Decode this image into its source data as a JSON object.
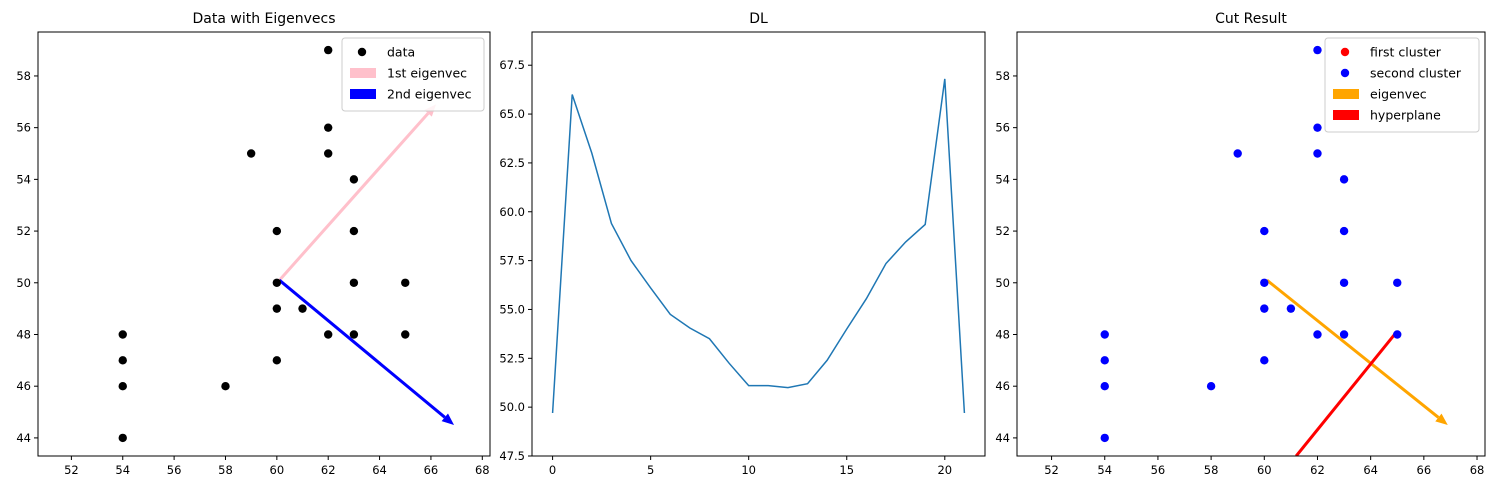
{
  "chart_data": [
    {
      "type": "scatter",
      "title": "Data with Eigenvecs",
      "xlim": [
        50.7,
        68.3
      ],
      "ylim": [
        43.3,
        59.7
      ],
      "xticks": [
        52,
        54,
        56,
        58,
        60,
        62,
        64,
        66,
        68
      ],
      "yticks": [
        44,
        46,
        48,
        50,
        52,
        54,
        56,
        58
      ],
      "series": [
        {
          "name": "data",
          "color": "#000000",
          "points": [
            [
              54,
              44
            ],
            [
              54,
              46
            ],
            [
              54,
              47
            ],
            [
              54,
              48
            ],
            [
              58,
              46
            ],
            [
              59,
              55
            ],
            [
              60,
              47
            ],
            [
              60,
              49
            ],
            [
              60,
              50
            ],
            [
              60,
              52
            ],
            [
              61,
              49
            ],
            [
              62,
              48
            ],
            [
              62,
              55
            ],
            [
              62,
              56
            ],
            [
              62,
              59
            ],
            [
              63,
              48
            ],
            [
              63,
              50
            ],
            [
              63,
              52
            ],
            [
              63,
              54
            ],
            [
              65,
              48
            ],
            [
              65,
              50
            ]
          ]
        }
      ],
      "arrows": [
        {
          "name": "1st eigenvec",
          "color": "#ffc0cb",
          "from": [
            60.1,
            50.1
          ],
          "to": [
            66.2,
            56.9
          ]
        },
        {
          "name": "2nd eigenvec",
          "color": "#0000ff",
          "from": [
            60.1,
            50.1
          ],
          "to": [
            66.9,
            44.5
          ]
        }
      ],
      "legend": {
        "position": "top-right",
        "entries": [
          {
            "label": "data",
            "kind": "marker",
            "color": "#000000"
          },
          {
            "label": "1st eigenvec",
            "kind": "patch",
            "color": "#ffc0cb"
          },
          {
            "label": "2nd eigenvec",
            "kind": "patch",
            "color": "#0000ff"
          }
        ]
      }
    },
    {
      "type": "line",
      "title": "DL",
      "xlim": [
        -1.05,
        22.05
      ],
      "ylim": [
        47.5,
        69.2
      ],
      "xticks": [
        0,
        5,
        10,
        15,
        20
      ],
      "yticks": [
        47.5,
        50.0,
        52.5,
        55.0,
        57.5,
        60.0,
        62.5,
        65.0,
        67.5
      ],
      "series": [
        {
          "color": "#1f77b4",
          "x": [
            0,
            1,
            2,
            3,
            4,
            5,
            6,
            7,
            8,
            9,
            10,
            11,
            12,
            13,
            14,
            15,
            16,
            17,
            18,
            19,
            20,
            21
          ],
          "y": [
            49.7,
            66.0,
            63.0,
            59.4,
            57.5,
            56.1,
            54.75,
            54.05,
            53.5,
            52.25,
            51.1,
            51.1,
            51.0,
            51.2,
            52.4,
            54.0,
            55.55,
            57.35,
            58.45,
            59.35,
            66.8,
            49.7
          ]
        }
      ]
    },
    {
      "type": "scatter",
      "title": "Cut Result",
      "xlim": [
        50.7,
        68.3
      ],
      "ylim": [
        43.3,
        59.7
      ],
      "xticks": [
        52,
        54,
        56,
        58,
        60,
        62,
        64,
        66,
        68
      ],
      "yticks": [
        44,
        46,
        48,
        50,
        52,
        54,
        56,
        58
      ],
      "series": [
        {
          "name": "first cluster",
          "color": "#ff0000",
          "points": []
        },
        {
          "name": "second cluster",
          "color": "#0000ff",
          "points": [
            [
              54,
              44
            ],
            [
              54,
              46
            ],
            [
              54,
              47
            ],
            [
              54,
              48
            ],
            [
              58,
              46
            ],
            [
              59,
              55
            ],
            [
              60,
              47
            ],
            [
              60,
              49
            ],
            [
              60,
              50
            ],
            [
              60,
              52
            ],
            [
              61,
              49
            ],
            [
              62,
              48
            ],
            [
              62,
              55
            ],
            [
              62,
              56
            ],
            [
              62,
              59
            ],
            [
              63,
              48
            ],
            [
              63,
              50
            ],
            [
              63,
              52
            ],
            [
              63,
              54
            ],
            [
              65,
              48
            ],
            [
              65,
              50
            ]
          ]
        }
      ],
      "arrows": [
        {
          "name": "eigenvec",
          "color": "#ffa500",
          "from": [
            60.1,
            50.1
          ],
          "to": [
            66.9,
            44.5
          ]
        },
        {
          "name": "hyperplane",
          "color": "#ff0000",
          "from": [
            61.2,
            43.3
          ],
          "to": [
            64.9,
            48.0
          ],
          "head": false
        }
      ],
      "legend": {
        "position": "top-right",
        "entries": [
          {
            "label": "first cluster",
            "kind": "marker",
            "color": "#ff0000"
          },
          {
            "label": "second cluster",
            "kind": "marker",
            "color": "#0000ff"
          },
          {
            "label": "eigenvec",
            "kind": "patch",
            "color": "#ffa500"
          },
          {
            "label": "hyperplane",
            "kind": "patch",
            "color": "#ff0000"
          }
        ]
      }
    }
  ]
}
